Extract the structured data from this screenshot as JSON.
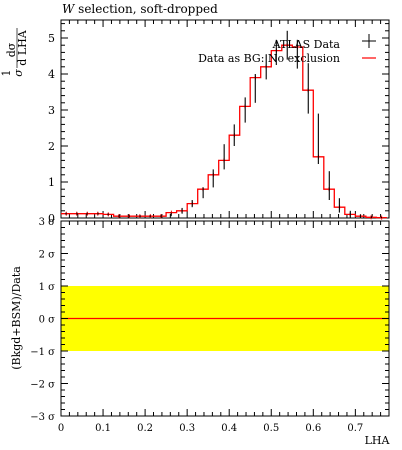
{
  "title_prefix": "W",
  "title_rest": " selection, soft-dropped",
  "chart_data": [
    {
      "type": "line",
      "panel": "main",
      "ylabel_num": "1",
      "ylabel_den": "σ",
      "ylabel_frac_num": "dσ",
      "ylabel_frac_den": "d LHA",
      "xlim": [
        0,
        0.78
      ],
      "ylim": [
        0,
        5.5
      ],
      "yticks": [
        0,
        1,
        2,
        3,
        4,
        5
      ],
      "ytick_labels": [
        "0",
        "1",
        "2",
        "3",
        "4",
        "5"
      ],
      "legend_placement": "top-right",
      "series": [
        {
          "name": "ATLAS Data",
          "color": "#000000",
          "style": "points-with-errorbars",
          "x": [
            0.012,
            0.038,
            0.062,
            0.088,
            0.112,
            0.138,
            0.162,
            0.188,
            0.212,
            0.238,
            0.262,
            0.288,
            0.312,
            0.338,
            0.362,
            0.388,
            0.412,
            0.438,
            0.462,
            0.488,
            0.512,
            0.538,
            0.562,
            0.588,
            0.612,
            0.638,
            0.662,
            0.688,
            0.712,
            0.738,
            0.762
          ],
          "y": [
            0.12,
            0.12,
            0.12,
            0.12,
            0.1,
            0.05,
            0.05,
            0.05,
            0.05,
            0.05,
            0.1,
            0.2,
            0.4,
            0.7,
            1.1,
            1.7,
            2.3,
            3.0,
            3.6,
            4.2,
            4.6,
            4.8,
            4.55,
            3.6,
            2.2,
            0.9,
            0.35,
            0.1,
            0.05,
            0.02,
            0.01
          ],
          "yerr": [
            0.03,
            0.03,
            0.03,
            0.03,
            0.03,
            0.03,
            0.03,
            0.03,
            0.03,
            0.03,
            0.05,
            0.08,
            0.1,
            0.15,
            0.25,
            0.35,
            0.3,
            0.35,
            0.4,
            0.35,
            0.35,
            0.4,
            0.4,
            0.7,
            0.7,
            0.4,
            0.2,
            0.1,
            0.05,
            0.03,
            0.02
          ]
        },
        {
          "name": "Data as BG: No exclusion",
          "color": "#ff0000",
          "style": "histogram",
          "edges": [
            0,
            0.025,
            0.05,
            0.075,
            0.1,
            0.125,
            0.15,
            0.175,
            0.2,
            0.225,
            0.25,
            0.275,
            0.3,
            0.325,
            0.35,
            0.375,
            0.4,
            0.425,
            0.45,
            0.475,
            0.5,
            0.525,
            0.55,
            0.575,
            0.6,
            0.625,
            0.65,
            0.675,
            0.7,
            0.725,
            0.75,
            0.775
          ],
          "values": [
            0.12,
            0.12,
            0.12,
            0.12,
            0.1,
            0.05,
            0.05,
            0.05,
            0.05,
            0.05,
            0.15,
            0.2,
            0.4,
            0.8,
            1.2,
            1.6,
            2.3,
            3.1,
            3.9,
            4.2,
            4.65,
            4.8,
            4.75,
            3.55,
            1.7,
            0.8,
            0.3,
            0.1,
            0.05,
            0.02,
            0.01
          ]
        }
      ]
    },
    {
      "type": "area",
      "panel": "ratio",
      "ylabel": "(Bkgd+BSM)/Data",
      "xlabel": "LHA",
      "xlim": [
        0,
        0.78
      ],
      "ylim": [
        -3,
        3
      ],
      "yticks": [
        -3,
        -2,
        -1,
        0,
        1,
        2,
        3
      ],
      "ytick_labels": [
        "−3 σ",
        "−2 σ",
        "−1 σ",
        "0 σ",
        "1 σ",
        "2 σ",
        "3 σ"
      ],
      "xticks": [
        0,
        0.1,
        0.2,
        0.3,
        0.4,
        0.5,
        0.6,
        0.7
      ],
      "xtick_labels": [
        "0",
        "0.1",
        "0.2",
        "0.3",
        "0.4",
        "0.5",
        "0.6",
        "0.7"
      ],
      "band": {
        "low": -1,
        "high": 1,
        "color": "#ffff00"
      },
      "line": {
        "value": 0,
        "color": "#ff0000"
      }
    }
  ]
}
